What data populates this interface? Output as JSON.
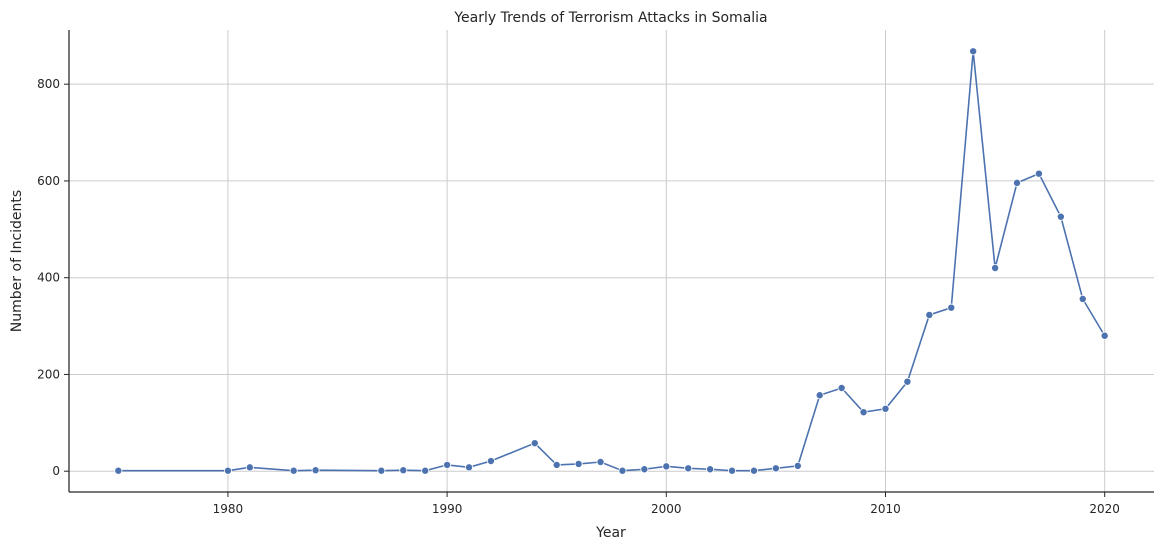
{
  "chart_data": {
    "type": "line",
    "title": "Yearly Trends of Terrorism Attacks in Somalia",
    "xlabel": "Year",
    "ylabel": "Number of Incidents",
    "xlim": [
      1972.75,
      2022.25
    ],
    "ylim": [
      -43,
      912
    ],
    "xticks": [
      1980,
      1990,
      2000,
      2010,
      2020
    ],
    "yticks": [
      0,
      200,
      400,
      600,
      800
    ],
    "grid": true,
    "color": "#4c72b0",
    "series": [
      {
        "x": [
          1975,
          1980,
          1981,
          1983,
          1984,
          1987,
          1988,
          1989,
          1990,
          1991,
          1992,
          1994,
          1995,
          1996,
          1997,
          1998,
          1999,
          2000,
          2001,
          2002,
          2003,
          2004,
          2005,
          2006,
          2007,
          2008,
          2009,
          2010,
          2011,
          2012,
          2013,
          2014,
          2015,
          2016,
          2017,
          2018,
          2019,
          2020
        ],
        "values": [
          1,
          1,
          8,
          1,
          2,
          1,
          2,
          1,
          13,
          8,
          21,
          58,
          13,
          15,
          19,
          1,
          4,
          10,
          6,
          4,
          1,
          1,
          6,
          11,
          157,
          172,
          122,
          129,
          185,
          323,
          338,
          868,
          420,
          596,
          615,
          526,
          356,
          280
        ]
      }
    ]
  }
}
